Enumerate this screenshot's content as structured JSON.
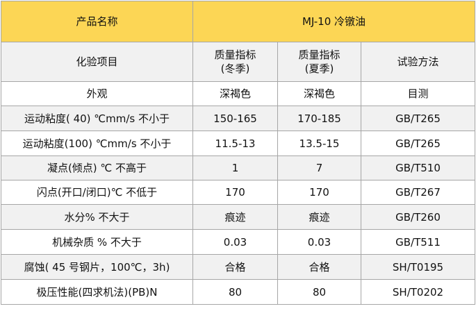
{
  "header": {
    "product_name_label": "产品名称",
    "product_name_value": "MJ-10 冷镦油"
  },
  "columns": {
    "item": "化验项目",
    "winter_line1": "质量指标",
    "winter_line2": "(冬季)",
    "summer_line1": "质量指标",
    "summer_line2": "(夏季)",
    "method": "试验方法"
  },
  "rows": [
    {
      "item": "外观",
      "winter": "深褐色",
      "summer": "深褐色",
      "method": "目测"
    },
    {
      "item": "运动粘度( 40) ℃mm/s  不小于",
      "winter": "150-165",
      "summer": "170-185",
      "method": "GB/T265"
    },
    {
      "item": "运动粘度(100) ℃mm/s  不小于",
      "winter": "11.5-13",
      "summer": "13.5-15",
      "method": "GB/T265"
    },
    {
      "item": "凝点(倾点) ℃   不高于",
      "winter": "1",
      "summer": "7",
      "method": "GB/T510"
    },
    {
      "item": "闪点(开口/闭口)℃  不低于",
      "winter": "170",
      "summer": "170",
      "method": "GB/T267"
    },
    {
      "item": "水分%  不大于",
      "winter": "痕迹",
      "summer": "痕迹",
      "method": "GB/T260"
    },
    {
      "item": "机械杂质  %    不大于",
      "winter": "0.03",
      "summer": "0.03",
      "method": "GB/T511"
    },
    {
      "item": "腐蚀( 45 号钢片，100℃，3h)",
      "winter": "合格",
      "summer": "合格",
      "method": "SH/T0195"
    },
    {
      "item": "极压性能(四求机法)(PB)N",
      "winter": "80",
      "summer": "80",
      "method": "SH/T0202"
    }
  ]
}
